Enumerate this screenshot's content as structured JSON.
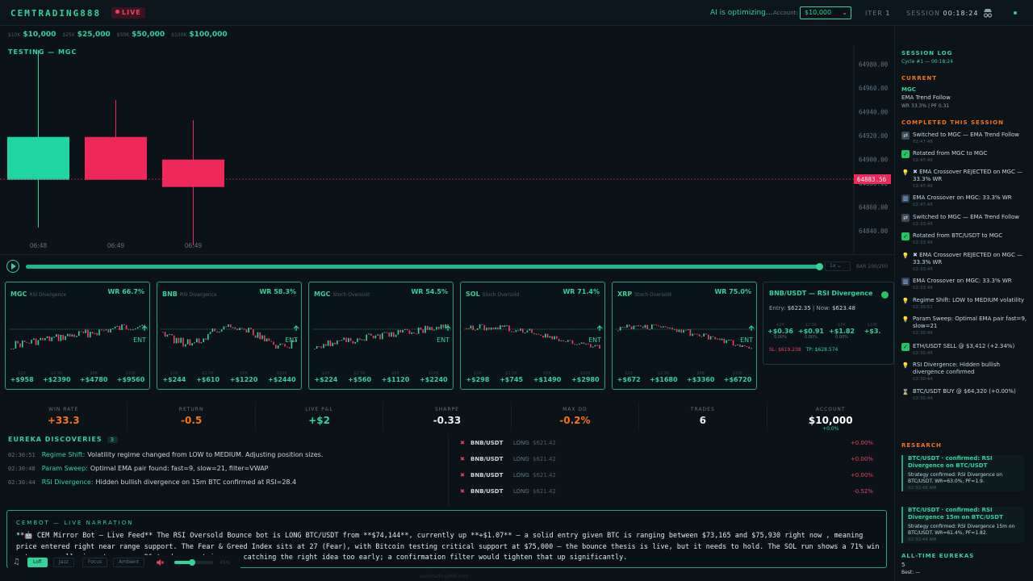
{
  "header": {
    "logo": "CEMTRADING888",
    "live_badge": "LIVE",
    "ai_status": "AI is optimizing...",
    "account_label": "Account:",
    "account_value": "$10,000",
    "iter_label": "ITER",
    "iter_value": "1",
    "session_label": "SESSION",
    "session_value": "00:18:24"
  },
  "milestones": [
    {
      "sub": "$10K",
      "value": "$10,000"
    },
    {
      "sub": "$25K",
      "value": "$25,000"
    },
    {
      "sub": "$50K",
      "value": "$50,000"
    },
    {
      "sub": "$100K",
      "value": "$100,000"
    }
  ],
  "chart_data": {
    "type": "candlestick",
    "title": "TESTING — MGC",
    "y_ticks": [
      "64980.00",
      "64960.00",
      "64940.00",
      "64920.00",
      "64900.00",
      "64880.00",
      "64860.00",
      "64840.00"
    ],
    "ylim": [
      64830,
      64992
    ],
    "x_labels": [
      "06:48",
      "06:49",
      "06:49"
    ],
    "candles": [
      {
        "open": 64883,
        "close": 64919,
        "high": 64992,
        "low": 64843
      },
      {
        "open": 64919,
        "close": 64883,
        "high": 64950,
        "low": 64883
      },
      {
        "open": 64900,
        "close": 64877,
        "high": 64933,
        "low": 64828
      }
    ],
    "current_price": "64883.56",
    "current_price_value": 64883.56
  },
  "playback": {
    "progress": 0.998,
    "speed": "1x",
    "bar_count": "BAR 200/200"
  },
  "cards": [
    {
      "symbol": "MGC",
      "strategy": "RSI Divergence",
      "wr": "WR 66.7%",
      "ent": "ENT",
      "trend": "up",
      "proj": [
        {
          "k": "$1K",
          "v": "+$958"
        },
        {
          "k": "$2.5K",
          "v": "+$2390"
        },
        {
          "k": "$5K",
          "v": "+$4780"
        },
        {
          "k": "$10K",
          "v": "+$9560"
        }
      ]
    },
    {
      "symbol": "BNB",
      "strategy": "RSI Divergence",
      "wr": "WR 58.3%",
      "ent": "ENT",
      "trend": "wave",
      "proj": [
        {
          "k": "$1K",
          "v": "+$244"
        },
        {
          "k": "$2.5K",
          "v": "+$610"
        },
        {
          "k": "$5K",
          "v": "+$1220"
        },
        {
          "k": "$10K",
          "v": "+$2440"
        }
      ]
    },
    {
      "symbol": "MGC",
      "strategy": "Stoch Oversold",
      "wr": "WR 54.5%",
      "ent": "ENT",
      "trend": "up",
      "proj": [
        {
          "k": "$1K",
          "v": "+$224"
        },
        {
          "k": "$2.5K",
          "v": "+$560"
        },
        {
          "k": "$5K",
          "v": "+$1120"
        },
        {
          "k": "$10K",
          "v": "+$2240"
        }
      ]
    },
    {
      "symbol": "SOL",
      "strategy": "Stoch Oversold",
      "wr": "WR 71.4%",
      "ent": "ENT",
      "trend": "down",
      "proj": [
        {
          "k": "$1K",
          "v": "+$298"
        },
        {
          "k": "$2.5K",
          "v": "+$745"
        },
        {
          "k": "$5K",
          "v": "+$1490"
        },
        {
          "k": "$10K",
          "v": "+$2980"
        }
      ]
    },
    {
      "symbol": "XRP",
      "strategy": "Stoch Oversold",
      "wr": "WR 75.0%",
      "ent": "ENT",
      "trend": "down",
      "proj": [
        {
          "k": "$1K",
          "v": "+$672"
        },
        {
          "k": "$2.5K",
          "v": "+$1680"
        },
        {
          "k": "$5K",
          "v": "+$3360"
        },
        {
          "k": "$10K",
          "v": "+$6720"
        }
      ]
    }
  ],
  "detail_card": {
    "title": "BNB/USDT — RSI Divergence",
    "entry_label": "Entry:",
    "entry_value": "$622.35",
    "now_label": "| Now:",
    "now_value": "$623.48",
    "proj": [
      {
        "k": "$1K",
        "v": "+$0.36",
        "s": "0.00%"
      },
      {
        "k": "$2.5K",
        "v": "+$0.91",
        "s": "0.00%"
      },
      {
        "k": "$5K",
        "v": "+$1.82",
        "s": "0.00%"
      },
      {
        "k": "$10K",
        "v": "+$3.",
        "s": ""
      }
    ],
    "sl_label": "SL:",
    "sl_value": "$619.238",
    "tp_label": "TP:",
    "tp_value": "$628.574"
  },
  "stats": [
    {
      "label": "WIN RATE",
      "value": "+33.3",
      "color": "#f97316"
    },
    {
      "label": "RETURN",
      "value": "-0.5",
      "color": "#f97316"
    },
    {
      "label": "LIVE P&L",
      "value": "+$2",
      "color": "#34d399"
    },
    {
      "label": "SHARPE",
      "value": "-0.33",
      "color": "#e5edf2"
    },
    {
      "label": "MAX DD",
      "value": "-0.2%",
      "color": "#f97316"
    },
    {
      "label": "TRADES",
      "value": "6",
      "color": "#e5edf2"
    },
    {
      "label": "ACCOUNT",
      "value": "$10,000",
      "color": "#ffffff",
      "sub": "+0.0%"
    }
  ],
  "eureka": {
    "title": "EUREKA DISCOVERIES",
    "count": "3",
    "items": [
      {
        "time": "02:30:51",
        "key": "Regime Shift:",
        "msg": "Volatility regime changed from LOW to MEDIUM. Adjusting position sizes."
      },
      {
        "time": "02:30:48",
        "key": "Param Sweep:",
        "msg": "Optimal EMA pair found: fast=9, slow=21, filter=VWAP"
      },
      {
        "time": "02:30:44",
        "key": "RSI Divergence:",
        "msg": "Hidden bullish divergence on 15m BTC confirmed at RSI=28.4"
      }
    ]
  },
  "trades": [
    {
      "symbol": "BNB/USDT",
      "side": "LONG",
      "price": "$621.42",
      "pct": "+0.00%"
    },
    {
      "symbol": "BNB/USDT",
      "side": "LONG",
      "price": "$621.42",
      "pct": "+0.00%"
    },
    {
      "symbol": "BNB/USDT",
      "side": "LONG",
      "price": "$621.42",
      "pct": "+0.00%"
    },
    {
      "symbol": "BNB/USDT",
      "side": "LONG",
      "price": "$621.42",
      "pct": "-0.52%"
    }
  ],
  "narration": {
    "title": "CEMBOT — LIVE NARRATION",
    "text": "**🤖 CEM Mirror Bot — Live Feed** The RSI Oversold Bounce bot is LONG BTC/USDT from **$74,144**, currently up **+$1.07** — a solid entry given BTC is ranging between $73,165 and $75,930 right now , meaning price entered right near range support. The Fear & Greed Index sits at 27 (Fear), with Bitcoin testing critical support at $75,000 — the bounce thesis is live, but it needs to hold. The SOL run shows a 71% win rate — overall win rate across 96 trades — entries are catching the right idea too early; a confirmation filter would tighten that up significantly."
  },
  "music": {
    "icon": "♫",
    "moods": [
      "Lofi",
      "Jazz",
      "Focus",
      "Ambient"
    ],
    "active": 0,
    "volume": 0.45,
    "volume_label": "45%"
  },
  "footer": "cemtrading888.com",
  "sidebar": {
    "title": "SESSION LOG",
    "cycle": "Cycle #1 — 00:18:24",
    "current_label": "CURRENT",
    "current_symbol": "MGC",
    "current_strategy": "EMA Trend Follow",
    "current_stats": "WR 33.3% | PF 0.31",
    "completed_label": "COMPLETED THIS SESSION",
    "log": [
      {
        "icon": "swap",
        "glyph": "⇄",
        "text": "Switched to MGC — EMA Trend Follow",
        "time": "02:47:48"
      },
      {
        "icon": "check",
        "glyph": "✓",
        "text": "Rotated from MGC to MGC",
        "time": "02:47:48"
      },
      {
        "icon": "bulb",
        "glyph": "💡",
        "text": "✖ EMA Crossover REJECTED on MGC — 33.3% WR",
        "time": "02:47:48"
      },
      {
        "icon": "chart",
        "glyph": "▥",
        "text": "EMA Crossover on MGC: 33.3% WR",
        "time": "02:47:48"
      },
      {
        "icon": "swap",
        "glyph": "⇄",
        "text": "Switched to MGC — EMA Trend Follow",
        "time": "02:33:48"
      },
      {
        "icon": "check",
        "glyph": "✓",
        "text": "Rotated from BTC/USDT to MGC",
        "time": "02:33:48"
      },
      {
        "icon": "bulb",
        "glyph": "💡",
        "text": "✖ EMA Crossover REJECTED on MGC — 33.3% WR",
        "time": "02:33:48"
      },
      {
        "icon": "chart",
        "glyph": "▥",
        "text": "EMA Crossover on MGC: 33.3% WR",
        "time": "02:33:48"
      },
      {
        "icon": "bulb",
        "glyph": "💡",
        "text": "Regime Shift: LOW to MEDIUM volatility",
        "time": "02:30:51"
      },
      {
        "icon": "bulb",
        "glyph": "💡",
        "text": "Param Sweep: Optimal EMA pair fast=9, slow=21",
        "time": "02:30:48"
      },
      {
        "icon": "check",
        "glyph": "✓",
        "text": "ETH/USDT SELL @ $3,412 (+2.34%)",
        "time": "02:30:48"
      },
      {
        "icon": "bulb",
        "glyph": "💡",
        "text": "RSI Divergence: Hidden bullish divergence confirmed",
        "time": "02:30:44"
      },
      {
        "icon": "hour",
        "glyph": "⌛",
        "text": "BTC/USDT BUY @ $64,320 (+0.00%)",
        "time": "02:30:44"
      }
    ],
    "research_label": "RESEARCH",
    "research": [
      {
        "title": "BTC/USDT · confirmed: RSI Divergence on BTC/USDT",
        "body": "Strategy confirmed: RSI Divergence on BTC/USDT. WR=63.0%, PF=1.9.",
        "time": "02:30:48 AM"
      },
      {
        "title": "BTC/USDT · confirmed: RSI Divergence 15m on BTC/USDT",
        "body": "Strategy confirmed: RSI Divergence 15m on BTC/USDT. WR=61.4%, PF=1.82.",
        "time": "02:30:44 AM"
      }
    ],
    "alltime_label": "ALL-TIME EUREKAS",
    "alltime_value": "5",
    "best_label": "Best: —"
  }
}
